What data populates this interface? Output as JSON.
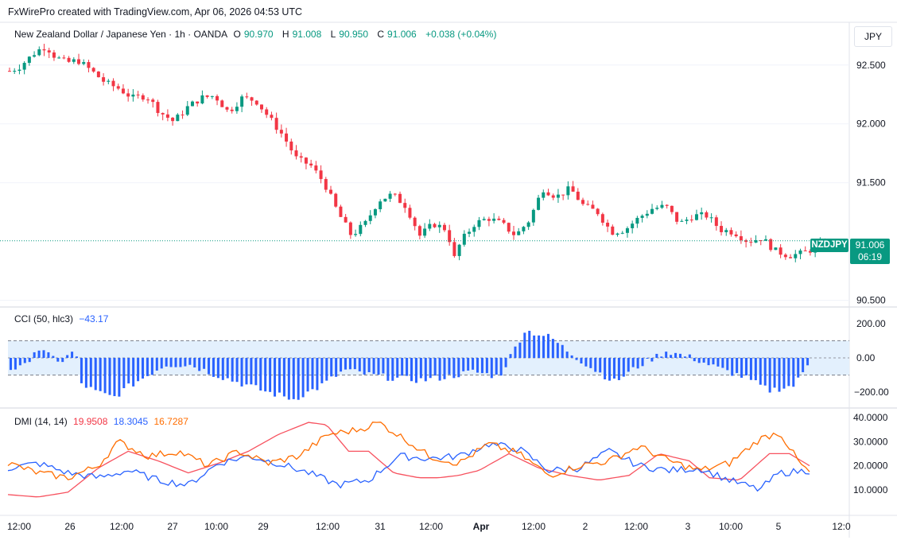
{
  "header": {
    "watermark": "FxWirePro created with TradingView.com, Apr 06, 2026 04:53 UTC",
    "symbol_title": "New Zealand Dollar / Japanese Yen · 1h · OANDA",
    "o_label": "O",
    "o_value": "90.970",
    "h_label": "H",
    "h_value": "91.008",
    "l_label": "L",
    "l_value": "90.950",
    "c_label": "C",
    "c_value": "91.006",
    "change": "+0.038 (+0.04%)"
  },
  "currency_button": "JPY",
  "price_badge": {
    "symbol": "NZDJPY",
    "price": "91.006",
    "countdown": "06:19"
  },
  "colors": {
    "up": "#089981",
    "down": "#f23645",
    "cci": "#2962ff",
    "cci_band": "#e3f0fd",
    "adx": "#f7525f",
    "plus_di": "#2962ff",
    "minus_di": "#ff6d00",
    "grid": "#f0f3fa"
  },
  "cci_legend": {
    "label": "CCI (50, hlc3)",
    "value": "−43.17"
  },
  "dmi_legend": {
    "label": "DMI (14, 14)",
    "adx": "19.9508",
    "plus_di": "18.3045",
    "minus_di": "16.7287"
  },
  "chart_data": [
    {
      "type": "candlestick",
      "title": "New Zealand Dollar / Japanese Yen · 1h · OANDA",
      "y_ticks": [
        "92.500",
        "92.000",
        "91.500",
        "90.500"
      ],
      "ylim": [
        90.45,
        92.85
      ],
      "x_ticks": [
        "12:00",
        "26",
        "12:00",
        "27",
        "10:00",
        "29",
        "12:00",
        "31",
        "12:00",
        "Apr",
        "12:00",
        "2",
        "12:00",
        "3",
        "10:00",
        "5",
        "12:0"
      ],
      "last_price": 91.006,
      "close_path": [
        [
          0,
          92.45
        ],
        [
          4,
          92.48
        ],
        [
          8,
          92.55
        ],
        [
          12,
          92.62
        ],
        [
          16,
          92.66
        ],
        [
          20,
          92.57
        ],
        [
          25,
          92.52
        ],
        [
          30,
          92.54
        ],
        [
          36,
          92.45
        ],
        [
          42,
          92.35
        ],
        [
          48,
          92.3
        ],
        [
          54,
          92.22
        ],
        [
          60,
          92.24
        ],
        [
          66,
          92.1
        ],
        [
          72,
          92.02
        ],
        [
          78,
          92.14
        ],
        [
          84,
          92.22
        ],
        [
          90,
          92.24
        ],
        [
          96,
          92.1
        ],
        [
          102,
          92.22
        ],
        [
          108,
          92.2
        ],
        [
          114,
          92.05
        ],
        [
          120,
          91.9
        ],
        [
          126,
          91.7
        ],
        [
          132,
          91.65
        ],
        [
          138,
          91.5
        ],
        [
          144,
          91.25
        ],
        [
          150,
          91.05
        ],
        [
          156,
          91.15
        ],
        [
          162,
          91.35
        ],
        [
          168,
          91.4
        ],
        [
          174,
          91.3
        ],
        [
          180,
          91.05
        ],
        [
          186,
          91.15
        ],
        [
          192,
          91.1
        ],
        [
          195,
          90.85
        ],
        [
          198,
          91.0
        ],
        [
          204,
          91.15
        ],
        [
          210,
          91.2
        ],
        [
          216,
          91.15
        ],
        [
          222,
          91.05
        ],
        [
          228,
          91.18
        ],
        [
          234,
          91.45
        ],
        [
          240,
          91.38
        ],
        [
          246,
          91.45
        ],
        [
          252,
          91.3
        ],
        [
          258,
          91.25
        ],
        [
          264,
          91.08
        ],
        [
          270,
          91.1
        ],
        [
          276,
          91.2
        ],
        [
          282,
          91.28
        ],
        [
          288,
          91.3
        ],
        [
          294,
          91.15
        ],
        [
          300,
          91.22
        ],
        [
          306,
          91.22
        ],
        [
          312,
          91.1
        ],
        [
          318,
          91.08
        ],
        [
          324,
          91.0
        ],
        [
          330,
          91.03
        ],
        [
          336,
          90.92
        ],
        [
          342,
          90.88
        ],
        [
          348,
          90.9
        ],
        [
          354,
          90.95
        ],
        [
          360,
          91.0
        ]
      ]
    },
    {
      "type": "bar",
      "title": "CCI (50, hlc3)",
      "y_ticks": [
        "200.00",
        "0.00",
        "−200.00"
      ],
      "ylim": [
        -250,
        250
      ],
      "bands": [
        100,
        -100
      ],
      "last_value": -43.17,
      "value_path": [
        [
          0,
          -60
        ],
        [
          6,
          -60
        ],
        [
          12,
          60
        ],
        [
          18,
          10
        ],
        [
          24,
          -20
        ],
        [
          30,
          50
        ],
        [
          33,
          -150
        ],
        [
          40,
          -200
        ],
        [
          48,
          -230
        ],
        [
          56,
          -160
        ],
        [
          64,
          -100
        ],
        [
          72,
          -40
        ],
        [
          84,
          -40
        ],
        [
          96,
          -100
        ],
        [
          108,
          -150
        ],
        [
          120,
          -200
        ],
        [
          132,
          -240
        ],
        [
          144,
          -170
        ],
        [
          156,
          -70
        ],
        [
          168,
          -100
        ],
        [
          180,
          -120
        ],
        [
          192,
          -130
        ],
        [
          204,
          -110
        ],
        [
          216,
          -80
        ],
        [
          228,
          -110
        ],
        [
          240,
          160
        ],
        [
          252,
          120
        ],
        [
          260,
          40
        ],
        [
          270,
          -50
        ],
        [
          282,
          -140
        ],
        [
          294,
          -40
        ],
        [
          306,
          40
        ],
        [
          318,
          0
        ],
        [
          330,
          -60
        ],
        [
          342,
          -110
        ],
        [
          354,
          -190
        ],
        [
          366,
          -160
        ],
        [
          372,
          -43
        ]
      ]
    },
    {
      "type": "line",
      "title": "DMI (14, 14)",
      "y_ticks": [
        "40.0000",
        "30.0000",
        "20.0000",
        "10.0000"
      ],
      "ylim": [
        3,
        41
      ],
      "series": [
        {
          "name": "ADX",
          "color": "#f7525f",
          "values": [
            [
              0,
              8
            ],
            [
              30,
              7
            ],
            [
              60,
              9
            ],
            [
              90,
              19
            ],
            [
              120,
              26
            ],
            [
              150,
              22
            ],
            [
              180,
              17
            ],
            [
              210,
              21
            ],
            [
              240,
              26
            ],
            [
              270,
              33
            ],
            [
              300,
              38
            ],
            [
              318,
              37
            ],
            [
              340,
              26
            ],
            [
              360,
              26
            ],
            [
              385,
              17
            ],
            [
              410,
              15
            ],
            [
              430,
              15
            ],
            [
              450,
              16
            ],
            [
              470,
              18
            ],
            [
              500,
              25
            ],
            [
              530,
              19
            ],
            [
              560,
              16
            ],
            [
              590,
              14
            ],
            [
              620,
              16
            ],
            [
              650,
              25
            ],
            [
              680,
              22
            ],
            [
              700,
              15
            ],
            [
              730,
              14
            ],
            [
              760,
              25
            ],
            [
              780,
              25
            ],
            [
              800,
              20
            ]
          ]
        },
        {
          "name": "+DI",
          "color": "#2962ff",
          "values": [
            [
              0,
              19
            ],
            [
              30,
              21
            ],
            [
              60,
              17
            ],
            [
              90,
              15
            ],
            [
              120,
              18
            ],
            [
              150,
              14
            ],
            [
              180,
              12
            ],
            [
              210,
              21
            ],
            [
              240,
              24
            ],
            [
              270,
              21
            ],
            [
              300,
              17
            ],
            [
              330,
              12
            ],
            [
              360,
              14
            ],
            [
              390,
              24
            ],
            [
              420,
              23
            ],
            [
              450,
              24
            ],
            [
              480,
              29
            ],
            [
              510,
              27
            ],
            [
              540,
              18
            ],
            [
              570,
              19
            ],
            [
              600,
              26
            ],
            [
              630,
              20
            ],
            [
              660,
              18
            ],
            [
              690,
              19
            ],
            [
              720,
              14
            ],
            [
              750,
              10
            ],
            [
              770,
              17
            ],
            [
              800,
              18
            ]
          ]
        },
        {
          "name": "−DI",
          "color": "#ff6d00",
          "values": [
            [
              0,
              21
            ],
            [
              30,
              17
            ],
            [
              60,
              15
            ],
            [
              90,
              20
            ],
            [
              110,
              30
            ],
            [
              140,
              24
            ],
            [
              170,
              26
            ],
            [
              200,
              20
            ],
            [
              230,
              26
            ],
            [
              260,
              21
            ],
            [
              290,
              24
            ],
            [
              320,
              33
            ],
            [
              350,
              35
            ],
            [
              370,
              38
            ],
            [
              400,
              30
            ],
            [
              420,
              24
            ],
            [
              450,
              21
            ],
            [
              480,
              29
            ],
            [
              510,
              25
            ],
            [
              540,
              16
            ],
            [
              570,
              20
            ],
            [
              600,
              22
            ],
            [
              630,
              28
            ],
            [
              660,
              22
            ],
            [
              690,
              18
            ],
            [
              720,
              21
            ],
            [
              750,
              31
            ],
            [
              770,
              34
            ],
            [
              790,
              21
            ],
            [
              800,
              17
            ]
          ]
        }
      ]
    }
  ]
}
